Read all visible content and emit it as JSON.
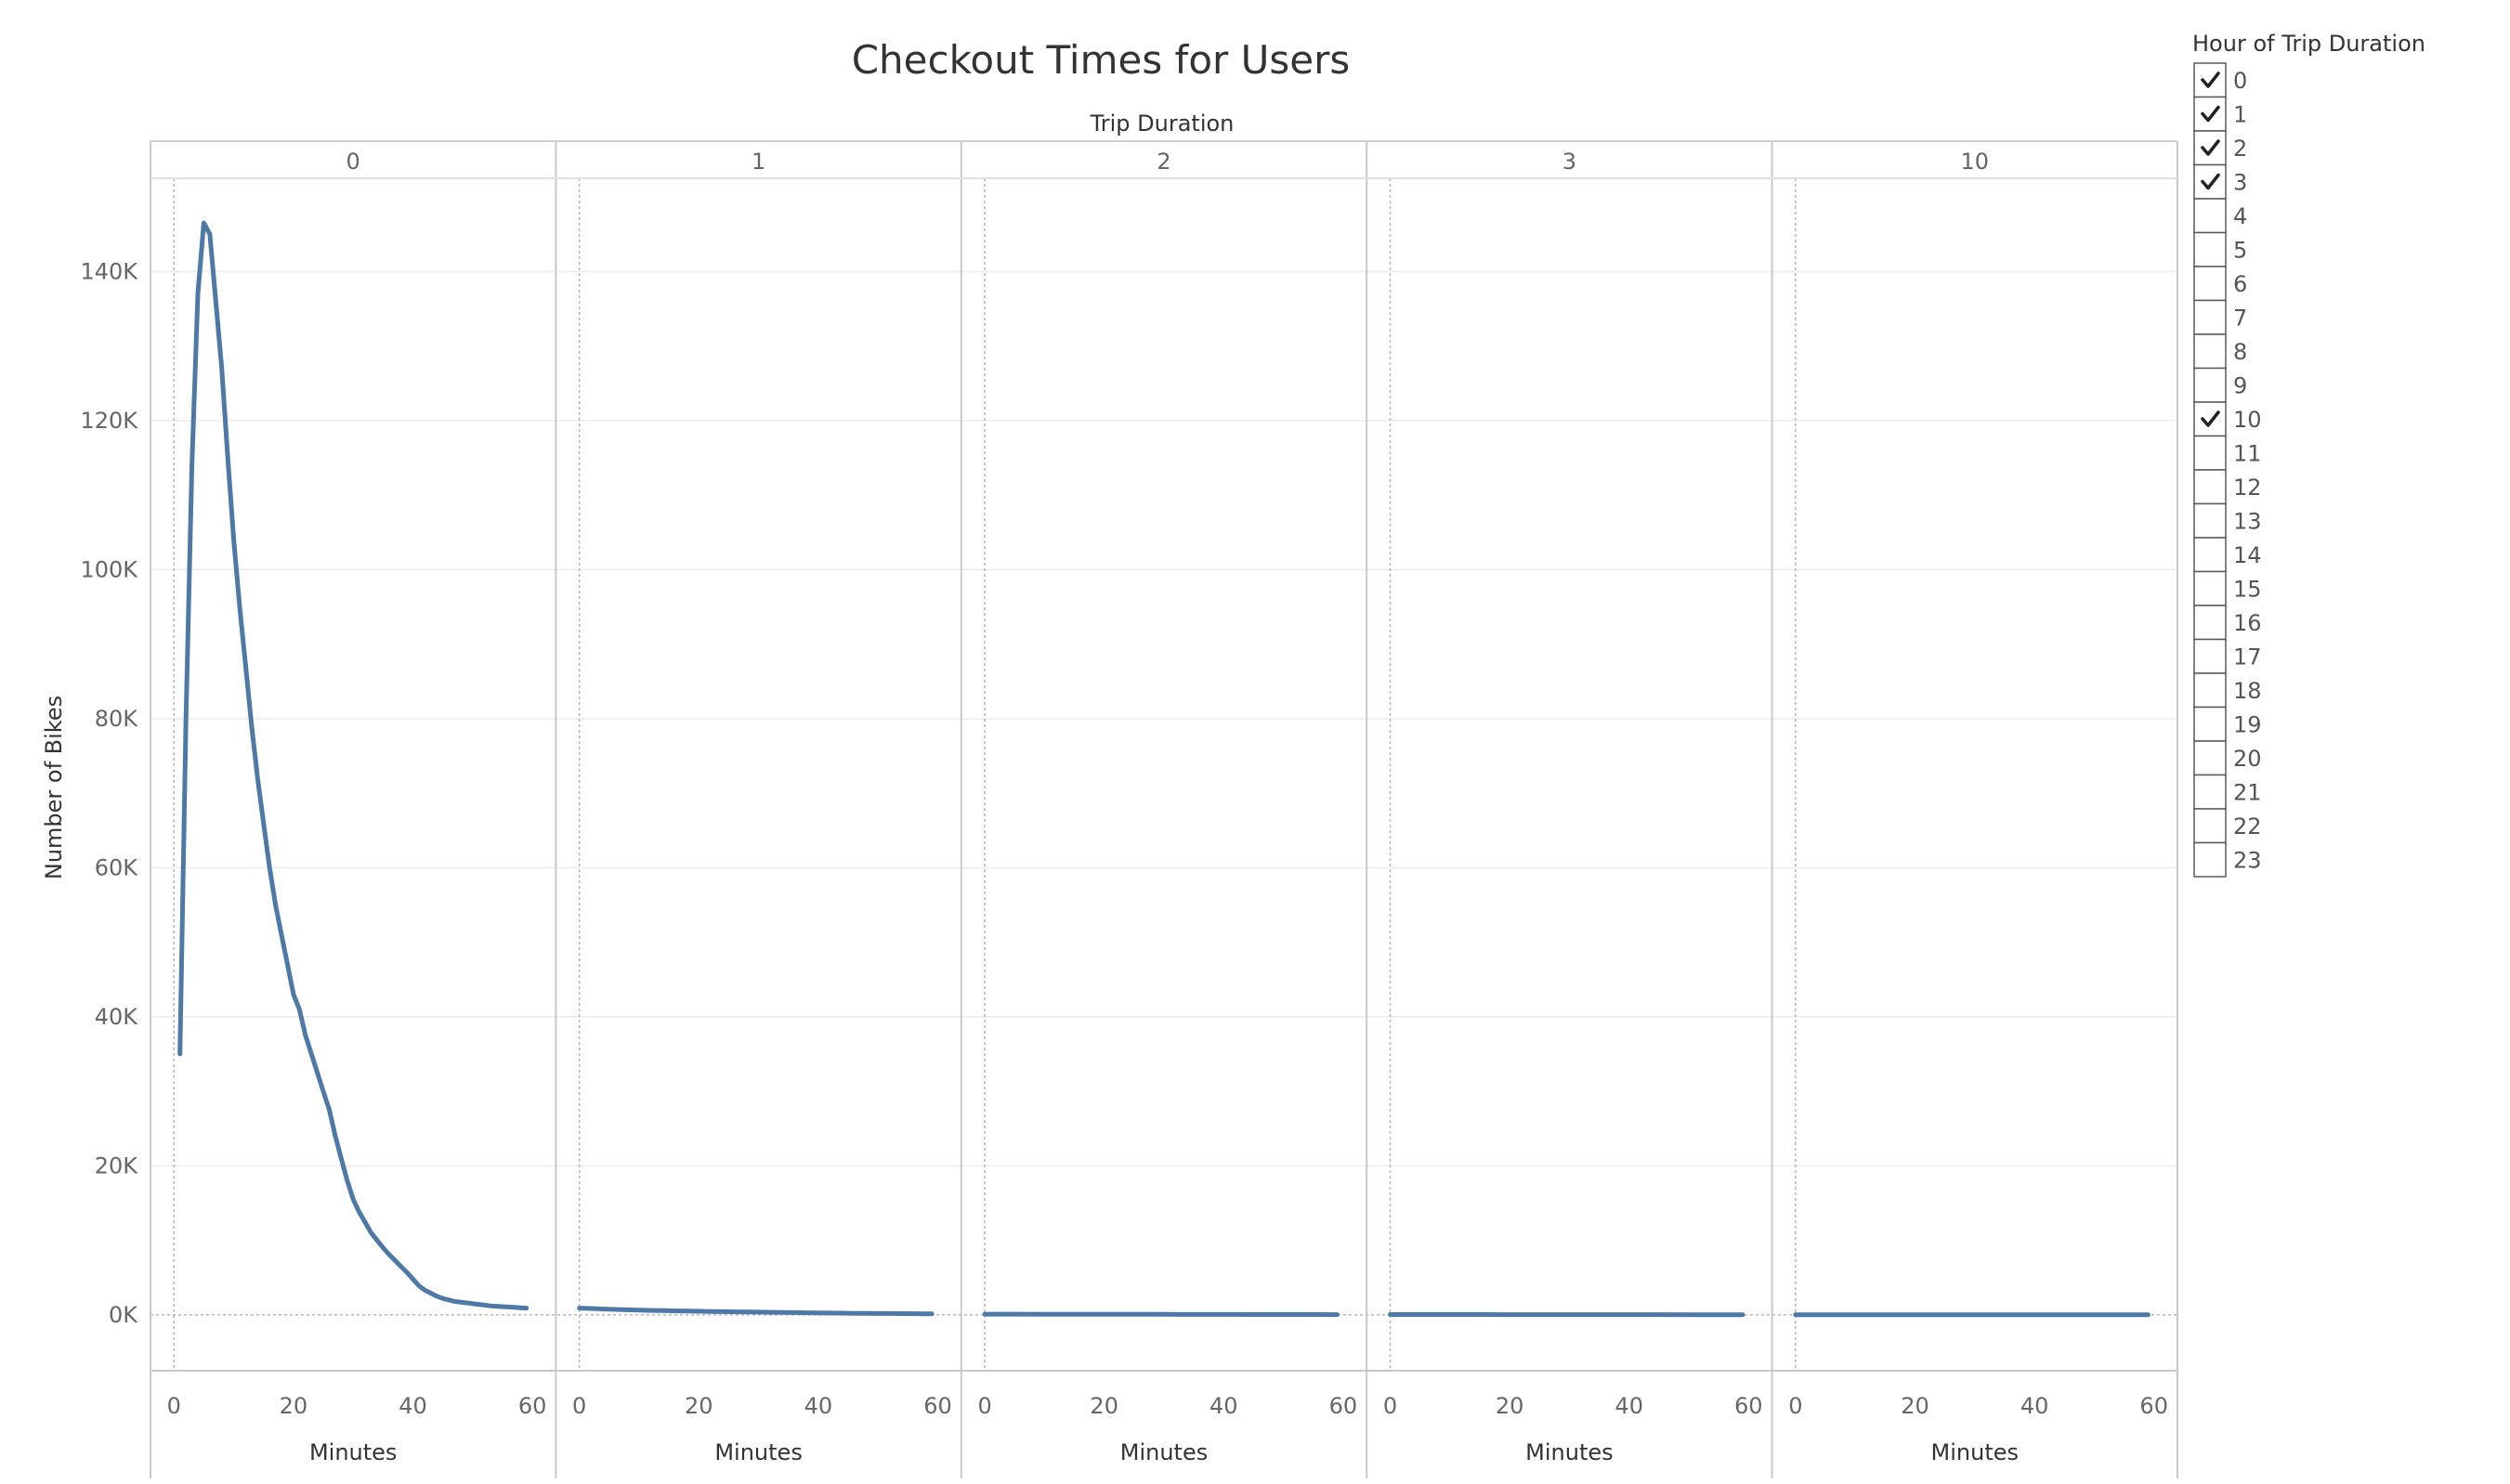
{
  "chart_data": {
    "type": "line",
    "title": "Checkout Times for Users",
    "column_header": "Trip Duration",
    "ylabel": "Number of Bikes",
    "xlabel": "Minutes",
    "ylim": [
      -7500,
      152500
    ],
    "xlim": [
      -3,
      63
    ],
    "y_ticks": [
      0,
      20000,
      40000,
      60000,
      80000,
      100000,
      120000,
      140000
    ],
    "y_tick_labels": [
      "0K",
      "20K",
      "40K",
      "60K",
      "80K",
      "100K",
      "120K",
      "140K"
    ],
    "x_ticks": [
      0,
      20,
      40,
      60
    ],
    "x_tick_labels": [
      "0",
      "20",
      "40",
      "60"
    ],
    "line_color": "#4e79a7",
    "grid": true,
    "panels": [
      {
        "label": "0",
        "series": {
          "x": [
            1,
            2,
            3,
            4,
            5,
            6,
            7,
            8,
            9,
            10,
            11,
            12,
            13,
            14,
            15,
            16,
            17,
            18,
            19,
            20,
            21,
            22,
            23,
            24,
            25,
            26,
            27,
            28,
            29,
            30,
            31,
            32,
            33,
            34,
            35,
            36,
            37,
            38,
            39,
            40,
            41,
            42,
            43,
            44,
            45,
            46,
            47,
            48,
            49,
            50,
            51,
            52,
            53,
            54,
            55,
            56,
            57,
            58,
            59
          ],
          "y": [
            35000,
            80000,
            114000,
            137000,
            146500,
            145000,
            136000,
            127000,
            115000,
            104000,
            95000,
            87000,
            79000,
            72000,
            66000,
            60000,
            55000,
            51000,
            47000,
            43000,
            41000,
            37500,
            35000,
            32500,
            30000,
            27500,
            24000,
            21000,
            18000,
            15500,
            13800,
            12400,
            11000,
            10000,
            9000,
            8100,
            7300,
            6500,
            5700,
            4800,
            3900,
            3300,
            2900,
            2500,
            2200,
            2000,
            1800,
            1700,
            1600,
            1500,
            1400,
            1300,
            1200,
            1150,
            1100,
            1050,
            1000,
            950,
            900
          ]
        }
      },
      {
        "label": "1",
        "series": {
          "x": [
            0,
            2,
            4,
            6,
            8,
            10,
            12,
            14,
            16,
            18,
            20,
            22,
            24,
            26,
            28,
            30,
            32,
            34,
            36,
            38,
            40,
            42,
            44,
            46,
            48,
            50,
            52,
            54,
            56,
            58,
            59
          ],
          "y": [
            900,
            850,
            780,
            720,
            670,
            630,
            590,
            560,
            530,
            500,
            470,
            440,
            420,
            400,
            380,
            360,
            340,
            320,
            300,
            280,
            260,
            240,
            220,
            200,
            190,
            180,
            170,
            160,
            150,
            140,
            130
          ]
        }
      },
      {
        "label": "2",
        "series": {
          "x": [
            0,
            5,
            10,
            15,
            20,
            25,
            30,
            35,
            40,
            45,
            50,
            55,
            59
          ],
          "y": [
            90,
            85,
            80,
            75,
            70,
            65,
            60,
            55,
            50,
            45,
            40,
            35,
            30
          ]
        }
      },
      {
        "label": "3",
        "series": {
          "x": [
            0,
            5,
            10,
            15,
            20,
            25,
            30,
            35,
            40,
            45,
            50,
            55,
            59
          ],
          "y": [
            40,
            38,
            36,
            34,
            32,
            30,
            28,
            26,
            24,
            22,
            20,
            18,
            16
          ]
        }
      },
      {
        "label": "10",
        "series": {
          "x": [
            0,
            5,
            10,
            15,
            20,
            25,
            30,
            35,
            40,
            45,
            50,
            55,
            59
          ],
          "y": [
            10,
            10,
            9,
            9,
            8,
            8,
            7,
            7,
            6,
            6,
            5,
            5,
            5
          ]
        }
      }
    ]
  },
  "legend": {
    "title": "Hour of Trip Duration",
    "items": [
      {
        "label": "0",
        "checked": true
      },
      {
        "label": "1",
        "checked": true
      },
      {
        "label": "2",
        "checked": true
      },
      {
        "label": "3",
        "checked": true
      },
      {
        "label": "4",
        "checked": false
      },
      {
        "label": "5",
        "checked": false
      },
      {
        "label": "6",
        "checked": false
      },
      {
        "label": "7",
        "checked": false
      },
      {
        "label": "8",
        "checked": false
      },
      {
        "label": "9",
        "checked": false
      },
      {
        "label": "10",
        "checked": true
      },
      {
        "label": "11",
        "checked": false
      },
      {
        "label": "12",
        "checked": false
      },
      {
        "label": "13",
        "checked": false
      },
      {
        "label": "14",
        "checked": false
      },
      {
        "label": "15",
        "checked": false
      },
      {
        "label": "16",
        "checked": false
      },
      {
        "label": "17",
        "checked": false
      },
      {
        "label": "18",
        "checked": false
      },
      {
        "label": "19",
        "checked": false
      },
      {
        "label": "20",
        "checked": false
      },
      {
        "label": "21",
        "checked": false
      },
      {
        "label": "22",
        "checked": false
      },
      {
        "label": "23",
        "checked": false
      }
    ]
  }
}
